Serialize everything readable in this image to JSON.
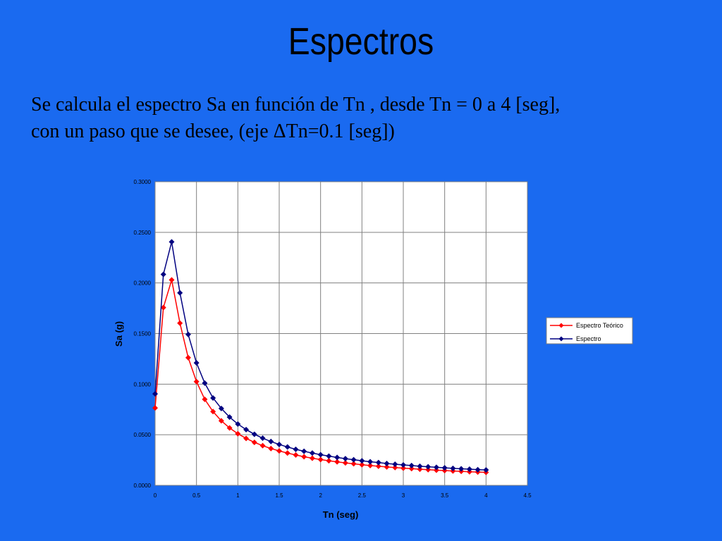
{
  "slide": {
    "title": "Espectros",
    "body_line1": "Se calcula el espectro Sa en función de Tn , desde Tn = 0 a 4 [seg],",
    "body_line2": "con un paso que se desee, (eje ΔTn=0.1 [seg])"
  },
  "chart_data": {
    "type": "line",
    "title": "",
    "xlabel": "Tn (seg)",
    "ylabel": "Sa (g)",
    "xlim": [
      0,
      4.5
    ],
    "ylim": [
      0,
      0.3
    ],
    "xticks": [
      "0",
      "0.5",
      "1",
      "1.5",
      "2",
      "2.5",
      "3",
      "3.5",
      "4",
      "4.5"
    ],
    "yticks": [
      "0.0000",
      "0.0500",
      "0.1000",
      "0.1500",
      "0.2000",
      "0.2500",
      "0.3000"
    ],
    "grid": true,
    "legend_position": "right",
    "x": [
      0,
      0.1,
      0.2,
      0.3,
      0.4,
      0.5,
      0.6,
      0.7,
      0.8,
      0.9,
      1.0,
      1.1,
      1.2,
      1.3,
      1.4,
      1.5,
      1.6,
      1.7,
      1.8,
      1.9,
      2.0,
      2.1,
      2.2,
      2.3,
      2.4,
      2.5,
      2.6,
      2.7,
      2.8,
      2.9,
      3.0,
      3.1,
      3.2,
      3.3,
      3.4,
      3.5,
      3.6,
      3.7,
      3.8,
      3.9,
      4.0
    ],
    "series": [
      {
        "name": "Espectro Teórico",
        "color": "#ff0000",
        "values": [
          0.0765,
          0.1757,
          0.203,
          0.1603,
          0.1262,
          0.1025,
          0.085,
          0.0729,
          0.0638,
          0.0567,
          0.051,
          0.0464,
          0.0425,
          0.0392,
          0.0364,
          0.034,
          0.0319,
          0.03,
          0.0283,
          0.0268,
          0.0255,
          0.0243,
          0.0232,
          0.0222,
          0.0213,
          0.0204,
          0.0196,
          0.0189,
          0.0182,
          0.0176,
          0.017,
          0.0165,
          0.0159,
          0.0155,
          0.015,
          0.0146,
          0.0142,
          0.0138,
          0.0134,
          0.0131,
          0.0128
        ]
      },
      {
        "name": "Espectro",
        "color": "#000080",
        "values": [
          0.0904,
          0.2085,
          0.2406,
          0.1902,
          0.1491,
          0.121,
          0.101,
          0.0863,
          0.076,
          0.0674,
          0.0606,
          0.0551,
          0.0505,
          0.0466,
          0.0433,
          0.0404,
          0.0379,
          0.0356,
          0.0337,
          0.0319,
          0.0303,
          0.0289,
          0.0276,
          0.0264,
          0.0253,
          0.0243,
          0.0233,
          0.0225,
          0.0216,
          0.0209,
          0.0202,
          0.0196,
          0.0189,
          0.0184,
          0.0178,
          0.0173,
          0.0168,
          0.0164,
          0.016,
          0.0155,
          0.0152
        ]
      }
    ]
  }
}
